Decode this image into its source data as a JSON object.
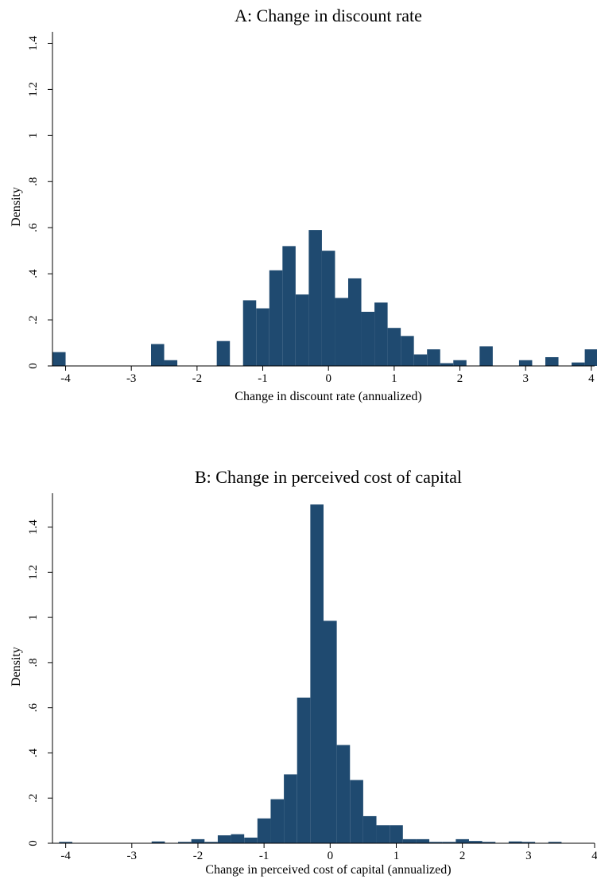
{
  "chart_data": [
    {
      "type": "bar",
      "title": "A: Change in discount rate",
      "xlabel": "Change in discount rate (annualized)",
      "ylabel": "Density",
      "xlim": [
        -4.2,
        4.05
      ],
      "ylim": [
        0,
        1.45
      ],
      "xticks": [
        "-4",
        "-3",
        "-2",
        "-1",
        "0",
        "1",
        "2",
        "3",
        "4"
      ],
      "yticks": [
        "0",
        ".2",
        ".4",
        ".6",
        ".8",
        "1",
        "1.2",
        "1.4"
      ],
      "bin_width": 0.2,
      "bins": [
        {
          "x": -4.1,
          "density": 0.06
        },
        {
          "x": -2.6,
          "density": 0.095
        },
        {
          "x": -2.4,
          "density": 0.025
        },
        {
          "x": -1.6,
          "density": 0.108
        },
        {
          "x": -1.2,
          "density": 0.285
        },
        {
          "x": -1.0,
          "density": 0.25
        },
        {
          "x": -0.8,
          "density": 0.415
        },
        {
          "x": -0.6,
          "density": 0.52
        },
        {
          "x": -0.4,
          "density": 0.31
        },
        {
          "x": -0.2,
          "density": 0.59
        },
        {
          "x": 0.0,
          "density": 0.5
        },
        {
          "x": 0.2,
          "density": 0.295
        },
        {
          "x": 0.4,
          "density": 0.38
        },
        {
          "x": 0.6,
          "density": 0.235
        },
        {
          "x": 0.8,
          "density": 0.275
        },
        {
          "x": 1.0,
          "density": 0.165
        },
        {
          "x": 1.2,
          "density": 0.13
        },
        {
          "x": 1.4,
          "density": 0.05
        },
        {
          "x": 1.6,
          "density": 0.072
        },
        {
          "x": 1.8,
          "density": 0.012
        },
        {
          "x": 2.0,
          "density": 0.025
        },
        {
          "x": 2.4,
          "density": 0.085
        },
        {
          "x": 3.0,
          "density": 0.025
        },
        {
          "x": 3.4,
          "density": 0.038
        },
        {
          "x": 3.8,
          "density": 0.015
        },
        {
          "x": 4.0,
          "density": 0.072
        }
      ]
    },
    {
      "type": "bar",
      "title": "B: Change in perceived cost of capital",
      "xlabel": "Change in perceived cost of capital (annualized)",
      "ylabel": "Density",
      "xlim": [
        -4.2,
        4.0
      ],
      "ylim": [
        0,
        1.55
      ],
      "xticks": [
        "-4",
        "-3",
        "-2",
        "-1",
        "0",
        "1",
        "2",
        "3",
        "4"
      ],
      "yticks": [
        "0",
        ".2",
        ".4",
        ".6",
        ".8",
        "1",
        "1.2",
        "1.4"
      ],
      "bin_width": 0.2,
      "bins": [
        {
          "x": -4.0,
          "density": 0.006
        },
        {
          "x": -2.6,
          "density": 0.008
        },
        {
          "x": -2.2,
          "density": 0.006
        },
        {
          "x": -2.0,
          "density": 0.018
        },
        {
          "x": -1.8,
          "density": 0.006
        },
        {
          "x": -1.6,
          "density": 0.035
        },
        {
          "x": -1.4,
          "density": 0.04
        },
        {
          "x": -1.2,
          "density": 0.025
        },
        {
          "x": -1.0,
          "density": 0.11
        },
        {
          "x": -0.8,
          "density": 0.195
        },
        {
          "x": -0.6,
          "density": 0.305
        },
        {
          "x": -0.4,
          "density": 0.645
        },
        {
          "x": -0.2,
          "density": 1.5
        },
        {
          "x": 0.0,
          "density": 0.985
        },
        {
          "x": 0.2,
          "density": 0.435
        },
        {
          "x": 0.4,
          "density": 0.28
        },
        {
          "x": 0.6,
          "density": 0.12
        },
        {
          "x": 0.8,
          "density": 0.08
        },
        {
          "x": 1.0,
          "density": 0.08
        },
        {
          "x": 1.2,
          "density": 0.018
        },
        {
          "x": 1.4,
          "density": 0.018
        },
        {
          "x": 1.6,
          "density": 0.006
        },
        {
          "x": 1.8,
          "density": 0.006
        },
        {
          "x": 2.0,
          "density": 0.018
        },
        {
          "x": 2.2,
          "density": 0.01
        },
        {
          "x": 2.4,
          "density": 0.006
        },
        {
          "x": 2.8,
          "density": 0.008
        },
        {
          "x": 3.0,
          "density": 0.006
        },
        {
          "x": 3.4,
          "density": 0.006
        }
      ]
    }
  ],
  "colors": {
    "bar": "#1f4a70",
    "axis": "#000000",
    "background": "#ffffff"
  }
}
